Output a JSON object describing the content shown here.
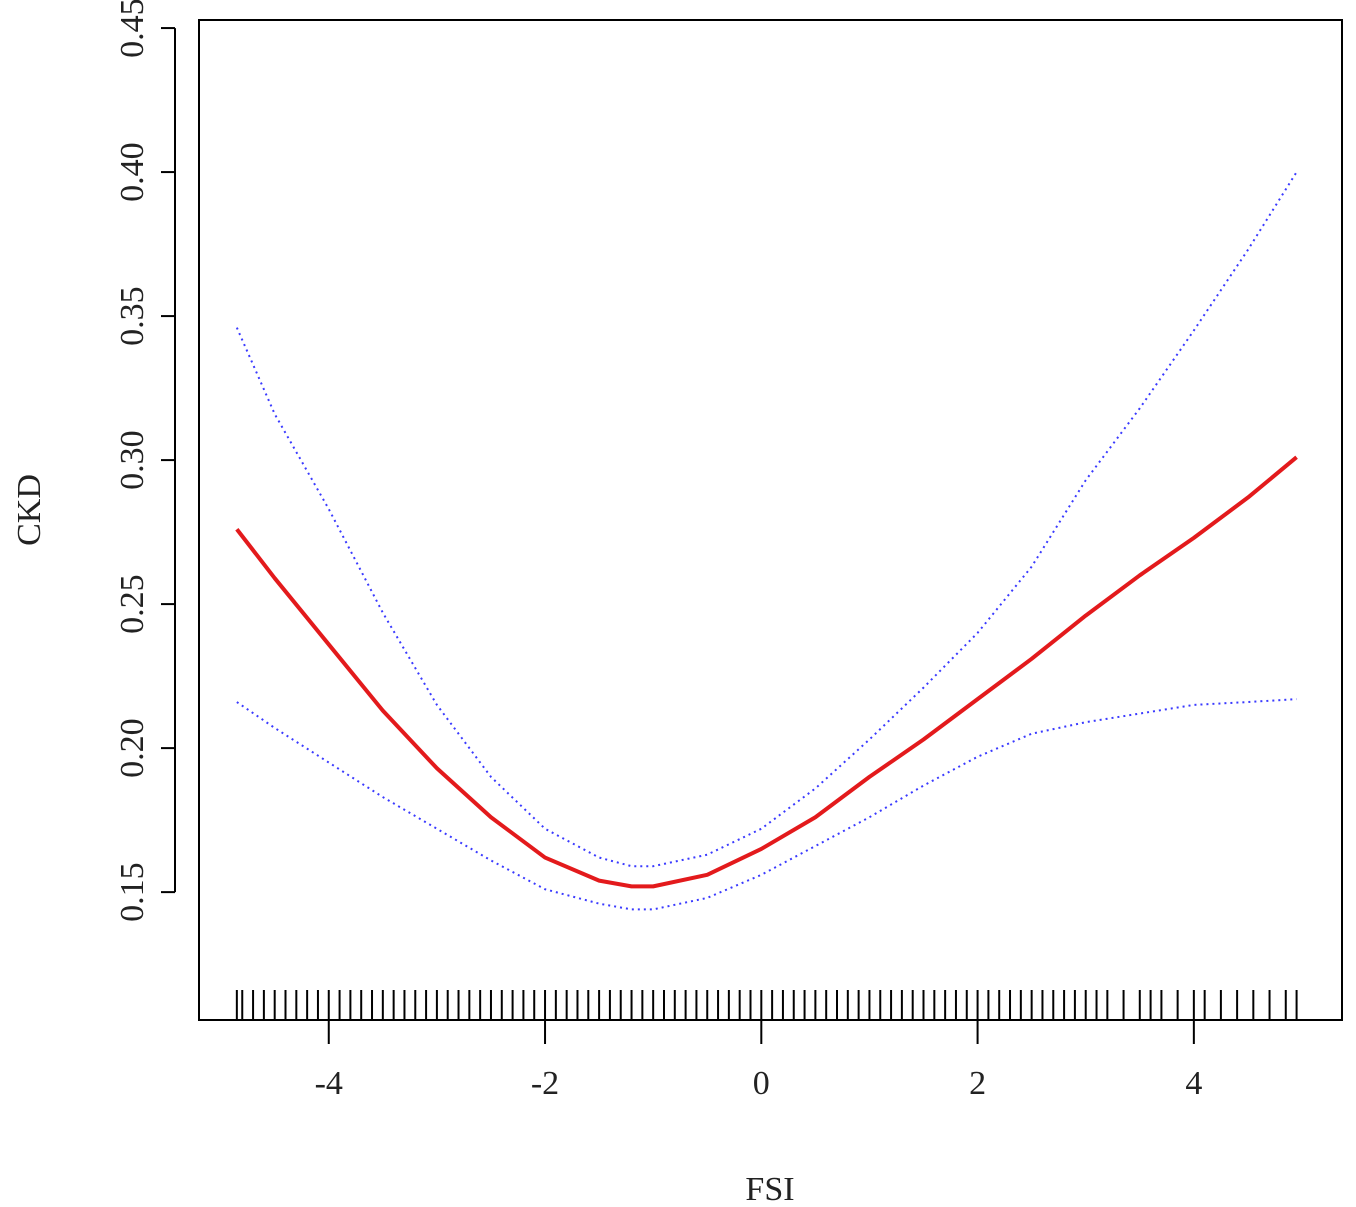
{
  "chart_data": {
    "type": "line",
    "xlabel": "FSI",
    "ylabel": "CKD",
    "x": [
      -4.85,
      -4.5,
      -4,
      -3.5,
      -3,
      -2.5,
      -2,
      -1.5,
      -1.2,
      -1,
      -0.5,
      0,
      0.5,
      1,
      1.5,
      2,
      2.5,
      3,
      3.5,
      4,
      4.5,
      4.95
    ],
    "series": [
      {
        "color": "#e31a1c",
        "style": "solid",
        "values": [
          0.276,
          0.259,
          0.236,
          0.213,
          0.193,
          0.176,
          0.162,
          0.154,
          0.152,
          0.152,
          0.156,
          0.165,
          0.176,
          0.19,
          0.203,
          0.217,
          0.231,
          0.246,
          0.26,
          0.273,
          0.287,
          0.301
        ]
      },
      {
        "color": "#3a3aff",
        "style": "dotted",
        "values": [
          0.346,
          0.316,
          0.283,
          0.247,
          0.215,
          0.19,
          0.172,
          0.162,
          0.159,
          0.159,
          0.163,
          0.172,
          0.186,
          0.203,
          0.221,
          0.24,
          0.263,
          0.293,
          0.318,
          0.345,
          0.373,
          0.4
        ]
      },
      {
        "color": "#3a3aff",
        "style": "dotted",
        "values": [
          0.216,
          0.207,
          0.195,
          0.183,
          0.172,
          0.161,
          0.151,
          0.146,
          0.144,
          0.144,
          0.148,
          0.156,
          0.166,
          0.176,
          0.187,
          0.197,
          0.205,
          0.209,
          0.212,
          0.215,
          0.216,
          0.217
        ]
      }
    ],
    "rug": [
      -4.85,
      -4.8,
      -4.7,
      -4.6,
      -4.5,
      -4.4,
      -4.3,
      -4.2,
      -4.1,
      -4.0,
      -3.9,
      -3.8,
      -3.7,
      -3.6,
      -3.5,
      -3.4,
      -3.3,
      -3.2,
      -3.1,
      -3.0,
      -2.9,
      -2.8,
      -2.7,
      -2.6,
      -2.5,
      -2.4,
      -2.3,
      -2.2,
      -2.1,
      -2.0,
      -1.9,
      -1.8,
      -1.7,
      -1.6,
      -1.5,
      -1.4,
      -1.3,
      -1.2,
      -1.1,
      -1.0,
      -0.9,
      -0.8,
      -0.7,
      -0.6,
      -0.5,
      -0.4,
      -0.3,
      -0.2,
      -0.1,
      0,
      0.1,
      0.2,
      0.3,
      0.4,
      0.5,
      0.6,
      0.7,
      0.8,
      0.9,
      1.0,
      1.1,
      1.2,
      1.3,
      1.4,
      1.5,
      1.6,
      1.7,
      1.8,
      1.9,
      2.0,
      2.1,
      2.2,
      2.3,
      2.4,
      2.5,
      2.6,
      2.7,
      2.8,
      2.9,
      3.0,
      3.1,
      3.2,
      3.35,
      3.5,
      3.6,
      3.7,
      3.85,
      4.0,
      4.1,
      4.25,
      4.4,
      4.55,
      4.7,
      4.85,
      4.95
    ],
    "xlim": [
      -5.2,
      5.37
    ],
    "xticks": [
      -4,
      -2,
      0,
      2,
      4
    ],
    "ylim": [
      0.1056,
      0.4528
    ],
    "yticks": [
      0.15,
      {
        "value": 0.2,
        "label": "0.20"
      },
      0.25,
      {
        "value": 0.3,
        "label": "0.30"
      },
      0.35,
      {
        "value": 0.4,
        "label": "0.40"
      },
      0.45
    ]
  }
}
